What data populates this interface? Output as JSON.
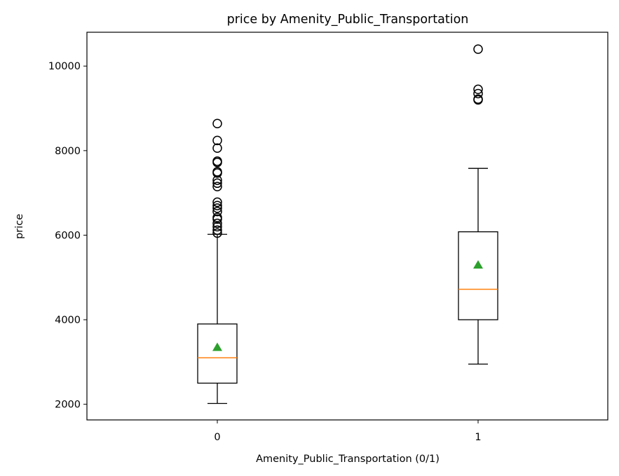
{
  "chart_data": {
    "type": "box",
    "title": "price by Amenity_Public_Transportation",
    "xlabel": "Amenity_Public_Transportation (0/1)",
    "ylabel": "price",
    "ylim": [
      1630,
      10800
    ],
    "yticks": [
      2000,
      4000,
      6000,
      8000,
      10000
    ],
    "grid": false,
    "categories": [
      "0",
      "1"
    ],
    "boxes": [
      {
        "category": "0",
        "whisker_low": 2020,
        "q1": 2500,
        "median": 3100,
        "q3": 3900,
        "whisker_high": 6020,
        "mean": 3360,
        "outliers": [
          6050,
          6120,
          6200,
          6280,
          6380,
          6420,
          6560,
          6640,
          6700,
          6780,
          7150,
          7230,
          7300,
          7470,
          7500,
          7720,
          7750,
          8060,
          8240,
          8640
        ]
      },
      {
        "category": "1",
        "whisker_low": 2950,
        "q1": 4000,
        "median": 4720,
        "q3": 6080,
        "whisker_high": 7580,
        "mean": 5310,
        "outliers": [
          9200,
          9220,
          9350,
          9450,
          10400
        ]
      }
    ],
    "colors": {
      "box": "#000000",
      "median": "#ff7f0e",
      "mean": "#2ca02c",
      "outlier": "#000000"
    }
  }
}
